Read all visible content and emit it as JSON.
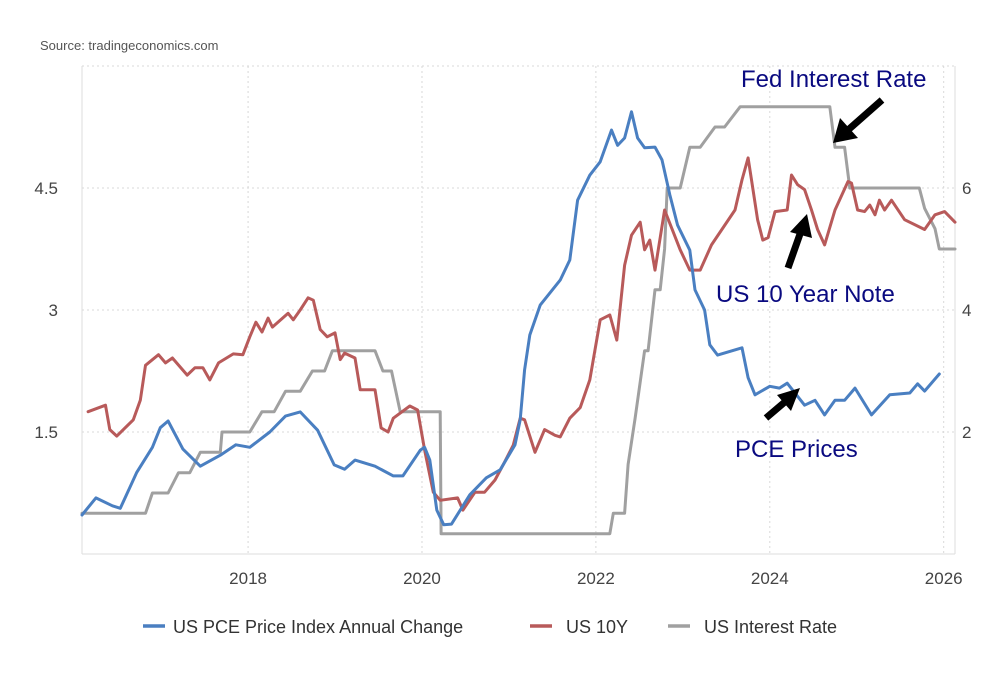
{
  "source": "Source: tradingeconomics.com",
  "colors": {
    "pce": "#4a7fc1",
    "us10y": "#b85a5a",
    "rate": "#a0a0a0",
    "annotation": "#0a0a80"
  },
  "annotations": {
    "fed": "Fed Interest Rate",
    "note": "US 10 Year Note",
    "pce": "PCE Prices"
  },
  "chart_data": {
    "type": "line",
    "title": "",
    "grid": true,
    "legend": "bottom",
    "x_ticks": [
      "2018",
      "2020",
      "2022",
      "2024",
      "2026"
    ],
    "x_tick_values": [
      2018,
      2020,
      2022,
      2024,
      2026
    ],
    "xlim": [
      2016.09,
      2026.13
    ],
    "left_axis": {
      "ticks": [
        "1.5",
        "3",
        "4.5"
      ],
      "tick_values": [
        1.5,
        3,
        4.5
      ],
      "ylim": [
        0,
        6
      ]
    },
    "right_axis": {
      "ticks": [
        "2",
        "4",
        "6"
      ],
      "tick_values": [
        2,
        4,
        6
      ],
      "ylim": [
        0,
        8
      ]
    },
    "series": [
      {
        "name": "US PCE Price Index Annual Change",
        "axis": "right",
        "color_key": "pce",
        "points": [
          [
            2016.09,
            0.64
          ],
          [
            2016.25,
            0.92
          ],
          [
            2016.44,
            0.79
          ],
          [
            2016.53,
            0.75
          ],
          [
            2016.72,
            1.34
          ],
          [
            2016.9,
            1.75
          ],
          [
            2016.99,
            2.07
          ],
          [
            2017.08,
            2.18
          ],
          [
            2017.25,
            1.72
          ],
          [
            2017.45,
            1.44
          ],
          [
            2017.68,
            1.62
          ],
          [
            2017.86,
            1.79
          ],
          [
            2018.02,
            1.75
          ],
          [
            2018.25,
            2.0
          ],
          [
            2018.43,
            2.26
          ],
          [
            2018.6,
            2.33
          ],
          [
            2018.8,
            2.03
          ],
          [
            2018.99,
            1.46
          ],
          [
            2019.11,
            1.39
          ],
          [
            2019.23,
            1.54
          ],
          [
            2019.46,
            1.44
          ],
          [
            2019.67,
            1.28
          ],
          [
            2019.78,
            1.28
          ],
          [
            2019.98,
            1.7
          ],
          [
            2020.03,
            1.75
          ],
          [
            2020.09,
            1.54
          ],
          [
            2020.17,
            0.72
          ],
          [
            2020.25,
            0.48
          ],
          [
            2020.34,
            0.49
          ],
          [
            2020.55,
            0.97
          ],
          [
            2020.74,
            1.25
          ],
          [
            2020.9,
            1.38
          ],
          [
            2021.07,
            1.79
          ],
          [
            2021.13,
            2.2
          ],
          [
            2021.18,
            3.02
          ],
          [
            2021.24,
            3.59
          ],
          [
            2021.36,
            4.08
          ],
          [
            2021.59,
            4.49
          ],
          [
            2021.7,
            4.82
          ],
          [
            2021.79,
            5.8
          ],
          [
            2021.93,
            6.21
          ],
          [
            2022.05,
            6.43
          ],
          [
            2022.18,
            6.95
          ],
          [
            2022.25,
            6.7
          ],
          [
            2022.33,
            6.82
          ],
          [
            2022.41,
            7.25
          ],
          [
            2022.48,
            6.82
          ],
          [
            2022.56,
            6.66
          ],
          [
            2022.68,
            6.67
          ],
          [
            2022.76,
            6.46
          ],
          [
            2022.85,
            5.89
          ],
          [
            2022.94,
            5.39
          ],
          [
            2023.08,
            4.98
          ],
          [
            2023.14,
            4.33
          ],
          [
            2023.25,
            4.0
          ],
          [
            2023.31,
            3.43
          ],
          [
            2023.4,
            3.26
          ],
          [
            2023.68,
            3.38
          ],
          [
            2023.75,
            2.89
          ],
          [
            2023.83,
            2.61
          ],
          [
            2024.0,
            2.75
          ],
          [
            2024.11,
            2.72
          ],
          [
            2024.2,
            2.8
          ],
          [
            2024.4,
            2.44
          ],
          [
            2024.52,
            2.52
          ],
          [
            2024.63,
            2.28
          ],
          [
            2024.75,
            2.52
          ],
          [
            2024.86,
            2.52
          ],
          [
            2024.98,
            2.72
          ],
          [
            2025.17,
            2.28
          ],
          [
            2025.38,
            2.61
          ],
          [
            2025.61,
            2.64
          ],
          [
            2025.7,
            2.79
          ],
          [
            2025.78,
            2.67
          ],
          [
            2025.95,
            2.95
          ]
        ]
      },
      {
        "name": "US 10Y",
        "axis": "left",
        "color_key": "us10y",
        "points": [
          [
            2016.16,
            1.75
          ],
          [
            2016.36,
            1.83
          ],
          [
            2016.41,
            1.53
          ],
          [
            2016.49,
            1.45
          ],
          [
            2016.68,
            1.65
          ],
          [
            2016.76,
            1.89
          ],
          [
            2016.82,
            2.32
          ],
          [
            2016.97,
            2.45
          ],
          [
            2017.05,
            2.35
          ],
          [
            2017.13,
            2.41
          ],
          [
            2017.3,
            2.2
          ],
          [
            2017.39,
            2.29
          ],
          [
            2017.48,
            2.29
          ],
          [
            2017.56,
            2.14
          ],
          [
            2017.66,
            2.35
          ],
          [
            2017.83,
            2.46
          ],
          [
            2017.94,
            2.45
          ],
          [
            2018.02,
            2.67
          ],
          [
            2018.09,
            2.85
          ],
          [
            2018.16,
            2.73
          ],
          [
            2018.23,
            2.9
          ],
          [
            2018.28,
            2.79
          ],
          [
            2018.46,
            2.96
          ],
          [
            2018.52,
            2.88
          ],
          [
            2018.6,
            3.0
          ],
          [
            2018.69,
            3.15
          ],
          [
            2018.75,
            3.12
          ],
          [
            2018.83,
            2.76
          ],
          [
            2018.91,
            2.67
          ],
          [
            2019.0,
            2.72
          ],
          [
            2019.06,
            2.39
          ],
          [
            2019.11,
            2.47
          ],
          [
            2019.23,
            2.41
          ],
          [
            2019.29,
            2.02
          ],
          [
            2019.46,
            2.02
          ],
          [
            2019.53,
            1.55
          ],
          [
            2019.61,
            1.5
          ],
          [
            2019.67,
            1.67
          ],
          [
            2019.86,
            1.82
          ],
          [
            2019.95,
            1.77
          ],
          [
            2020.03,
            1.28
          ],
          [
            2020.13,
            0.76
          ],
          [
            2020.21,
            0.66
          ],
          [
            2020.41,
            0.69
          ],
          [
            2020.47,
            0.54
          ],
          [
            2020.61,
            0.76
          ],
          [
            2020.72,
            0.76
          ],
          [
            2020.84,
            0.91
          ],
          [
            2020.95,
            1.13
          ],
          [
            2021.05,
            1.34
          ],
          [
            2021.13,
            1.67
          ],
          [
            2021.18,
            1.65
          ],
          [
            2021.3,
            1.25
          ],
          [
            2021.41,
            1.53
          ],
          [
            2021.53,
            1.46
          ],
          [
            2021.59,
            1.44
          ],
          [
            2021.7,
            1.67
          ],
          [
            2021.82,
            1.8
          ],
          [
            2021.93,
            2.14
          ],
          [
            2022.05,
            2.88
          ],
          [
            2022.16,
            2.94
          ],
          [
            2022.24,
            2.63
          ],
          [
            2022.33,
            3.55
          ],
          [
            2022.41,
            3.92
          ],
          [
            2022.51,
            4.08
          ],
          [
            2022.56,
            3.74
          ],
          [
            2022.62,
            3.86
          ],
          [
            2022.68,
            3.49
          ],
          [
            2022.74,
            3.89
          ],
          [
            2022.79,
            4.23
          ],
          [
            2022.97,
            3.74
          ],
          [
            2023.08,
            3.49
          ],
          [
            2023.2,
            3.49
          ],
          [
            2023.33,
            3.8
          ],
          [
            2023.6,
            4.23
          ],
          [
            2023.68,
            4.6
          ],
          [
            2023.75,
            4.87
          ],
          [
            2023.79,
            4.6
          ],
          [
            2023.86,
            4.11
          ],
          [
            2023.92,
            3.86
          ],
          [
            2023.98,
            3.89
          ],
          [
            2024.06,
            4.21
          ],
          [
            2024.2,
            4.23
          ],
          [
            2024.25,
            4.66
          ],
          [
            2024.32,
            4.54
          ],
          [
            2024.4,
            4.48
          ],
          [
            2024.48,
            4.23
          ],
          [
            2024.55,
            3.99
          ],
          [
            2024.63,
            3.8
          ],
          [
            2024.75,
            4.23
          ],
          [
            2024.9,
            4.58
          ],
          [
            2024.94,
            4.56
          ],
          [
            2025.01,
            4.23
          ],
          [
            2025.09,
            4.21
          ],
          [
            2025.15,
            4.29
          ],
          [
            2025.21,
            4.17
          ],
          [
            2025.26,
            4.35
          ],
          [
            2025.32,
            4.23
          ],
          [
            2025.4,
            4.35
          ],
          [
            2025.55,
            4.11
          ],
          [
            2025.78,
            3.99
          ],
          [
            2025.9,
            4.17
          ],
          [
            2026.01,
            4.21
          ],
          [
            2026.13,
            4.08
          ]
        ]
      },
      {
        "name": "US Interest Rate",
        "axis": "left",
        "color_key": "rate",
        "points": [
          [
            2016.09,
            0.5
          ],
          [
            2016.82,
            0.5
          ],
          [
            2016.9,
            0.75
          ],
          [
            2017.08,
            0.75
          ],
          [
            2017.2,
            1.0
          ],
          [
            2017.33,
            1.0
          ],
          [
            2017.45,
            1.25
          ],
          [
            2017.68,
            1.25
          ],
          [
            2017.7,
            1.5
          ],
          [
            2018.02,
            1.5
          ],
          [
            2018.16,
            1.75
          ],
          [
            2018.3,
            1.75
          ],
          [
            2018.43,
            2.0
          ],
          [
            2018.6,
            2.0
          ],
          [
            2018.74,
            2.25
          ],
          [
            2018.88,
            2.25
          ],
          [
            2018.97,
            2.5
          ],
          [
            2019.46,
            2.5
          ],
          [
            2019.55,
            2.25
          ],
          [
            2019.65,
            2.25
          ],
          [
            2019.75,
            1.75
          ],
          [
            2020.21,
            1.75
          ],
          [
            2020.22,
            0.25
          ],
          [
            2022.16,
            0.25
          ],
          [
            2022.2,
            0.5
          ],
          [
            2022.33,
            0.5
          ],
          [
            2022.37,
            1.1
          ],
          [
            2022.45,
            1.66
          ],
          [
            2022.56,
            2.5
          ],
          [
            2022.6,
            2.5
          ],
          [
            2022.68,
            3.25
          ],
          [
            2022.74,
            3.25
          ],
          [
            2022.79,
            3.75
          ],
          [
            2022.82,
            4.5
          ],
          [
            2022.97,
            4.5
          ],
          [
            2023.08,
            5.0
          ],
          [
            2023.2,
            5.0
          ],
          [
            2023.37,
            5.25
          ],
          [
            2023.48,
            5.25
          ],
          [
            2023.66,
            5.5
          ],
          [
            2024.69,
            5.5
          ],
          [
            2024.75,
            5.0
          ],
          [
            2024.86,
            5.0
          ],
          [
            2024.92,
            4.5
          ],
          [
            2025.72,
            4.5
          ],
          [
            2025.78,
            4.25
          ],
          [
            2025.9,
            4.0
          ],
          [
            2025.95,
            3.75
          ],
          [
            2026.13,
            3.75
          ]
        ]
      }
    ]
  }
}
